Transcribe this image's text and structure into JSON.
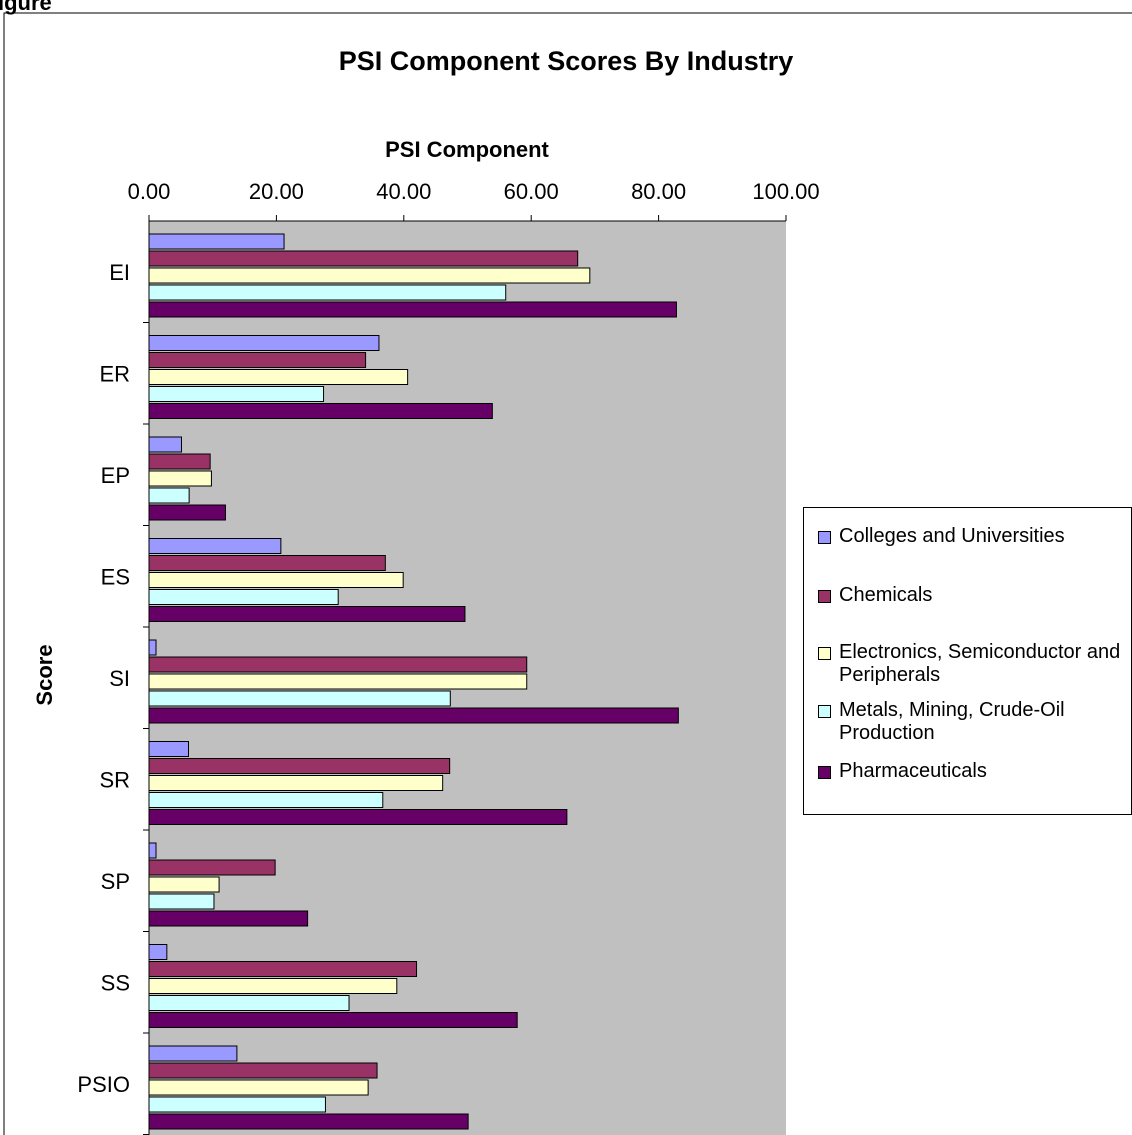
{
  "page_header": "igure",
  "chart_data": {
    "type": "bar",
    "orientation": "horizontal",
    "title": "PSI Component Scores By Industry",
    "value_axis_label": "PSI Component",
    "category_axis_label": "Score",
    "xlim": [
      0,
      100
    ],
    "ticks": [
      "0.00",
      "20.00",
      "40.00",
      "60.00",
      "80.00",
      "100.00"
    ],
    "categories": [
      "EI",
      "ER",
      "EP",
      "ES",
      "SI",
      "SR",
      "SP",
      "SS",
      "PSIO"
    ],
    "series": [
      {
        "name": "Colleges and Universities",
        "color": "#9999ff",
        "values": [
          21.2,
          36.1,
          5.1,
          20.7,
          1.1,
          6.2,
          1.1,
          2.8,
          13.8
        ]
      },
      {
        "name": "Chemicals",
        "color": "#993366",
        "values": [
          67.3,
          34.0,
          9.6,
          37.1,
          59.3,
          47.2,
          19.8,
          42.0,
          35.8
        ]
      },
      {
        "name": "Electronics, Semiconductor and Peripherals",
        "color": "#ffffcc",
        "values": [
          69.2,
          40.6,
          9.8,
          39.9,
          59.3,
          46.1,
          11.0,
          38.9,
          34.4
        ]
      },
      {
        "name": "Metals, Mining, Crude-Oil Production",
        "color": "#ccffff",
        "values": [
          56.0,
          27.4,
          6.3,
          29.7,
          47.3,
          36.7,
          10.2,
          31.4,
          27.7
        ]
      },
      {
        "name": "Pharmaceuticals",
        "color": "#660066",
        "values": [
          82.8,
          53.9,
          12.0,
          49.6,
          83.1,
          65.6,
          24.9,
          57.8,
          50.1
        ]
      }
    ],
    "plot_background": "#c0c0c0",
    "grid": false,
    "legend_position": "right"
  }
}
